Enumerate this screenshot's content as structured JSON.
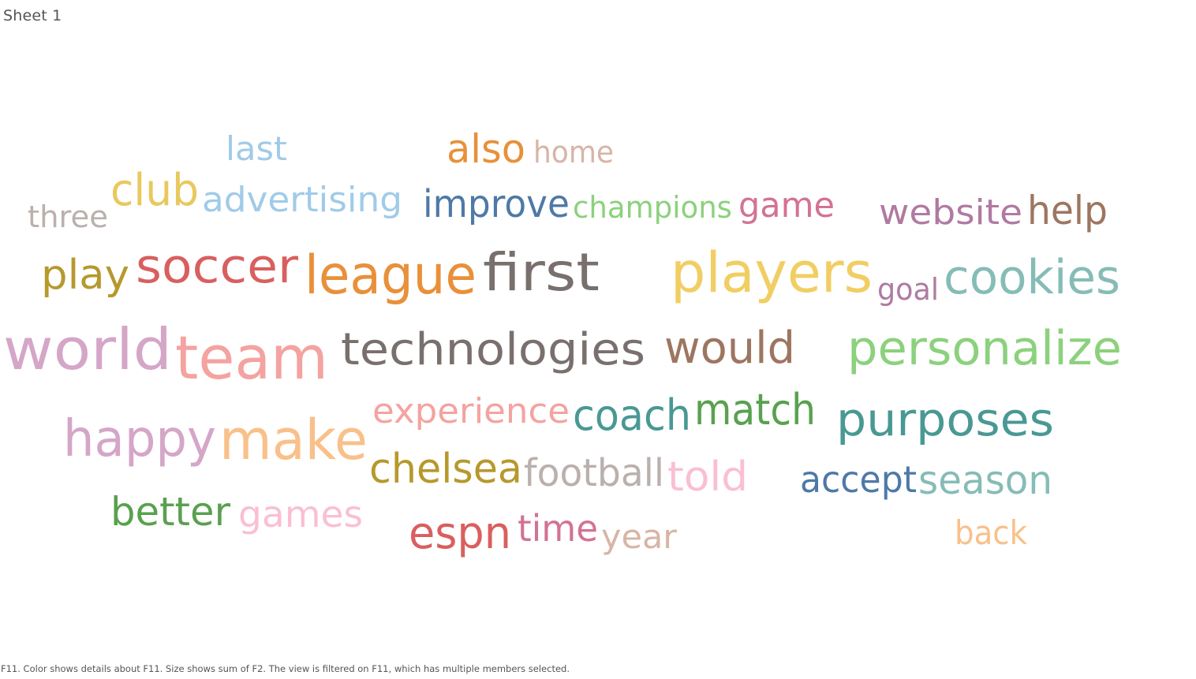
{
  "sheet_title": "Sheet 1",
  "caption": "F11.  Color shows details about F11.  Size shows sum of F2. The view is filtered on F11, which has multiple members selected.",
  "chart_data": {
    "type": "word_cloud",
    "color_field": "F11",
    "size_field": "F2",
    "words": [
      {
        "text": "last",
        "color": "#a0cbe8"
      },
      {
        "text": "also",
        "color": "#e8903a"
      },
      {
        "text": "home",
        "color": "#d7b5a6"
      },
      {
        "text": "club",
        "color": "#e8c95e"
      },
      {
        "text": "advertising",
        "color": "#a0cbe8"
      },
      {
        "text": "improve",
        "color": "#4e79a7"
      },
      {
        "text": "champions",
        "color": "#8cd17d"
      },
      {
        "text": "game",
        "color": "#d37295"
      },
      {
        "text": "website",
        "color": "#b07aa1"
      },
      {
        "text": "help",
        "color": "#9d7660"
      },
      {
        "text": "three",
        "color": "#bab0ac"
      },
      {
        "text": "play",
        "color": "#b6992d"
      },
      {
        "text": "soccer",
        "color": "#d95f5f"
      },
      {
        "text": "league",
        "color": "#e8903a"
      },
      {
        "text": "first",
        "color": "#79706e"
      },
      {
        "text": "players",
        "color": "#f1ce63"
      },
      {
        "text": "goal",
        "color": "#b07aa1"
      },
      {
        "text": "cookies",
        "color": "#86bcb6"
      },
      {
        "text": "world",
        "color": "#d4a6c8"
      },
      {
        "text": "team",
        "color": "#f4a3a0"
      },
      {
        "text": "technologies",
        "color": "#79706e"
      },
      {
        "text": "would",
        "color": "#9d7660"
      },
      {
        "text": "personalize",
        "color": "#8cd17d"
      },
      {
        "text": "experience",
        "color": "#f4a3a0"
      },
      {
        "text": "coach",
        "color": "#499894"
      },
      {
        "text": "match",
        "color": "#59a14f"
      },
      {
        "text": "purposes",
        "color": "#499894"
      },
      {
        "text": "happy",
        "color": "#d4a6c8"
      },
      {
        "text": "make",
        "color": "#f9c08a"
      },
      {
        "text": "chelsea",
        "color": "#b6992d"
      },
      {
        "text": "football",
        "color": "#bab0ac"
      },
      {
        "text": "told",
        "color": "#fabfd2"
      },
      {
        "text": "accept",
        "color": "#4e79a7"
      },
      {
        "text": "season",
        "color": "#86bcb6"
      },
      {
        "text": "better",
        "color": "#59a14f"
      },
      {
        "text": "games",
        "color": "#fabfd2"
      },
      {
        "text": "espn",
        "color": "#d95f5f"
      },
      {
        "text": "time",
        "color": "#d37295"
      },
      {
        "text": "year",
        "color": "#d7b5a6"
      },
      {
        "text": "back",
        "color": "#f9c08a"
      }
    ]
  }
}
